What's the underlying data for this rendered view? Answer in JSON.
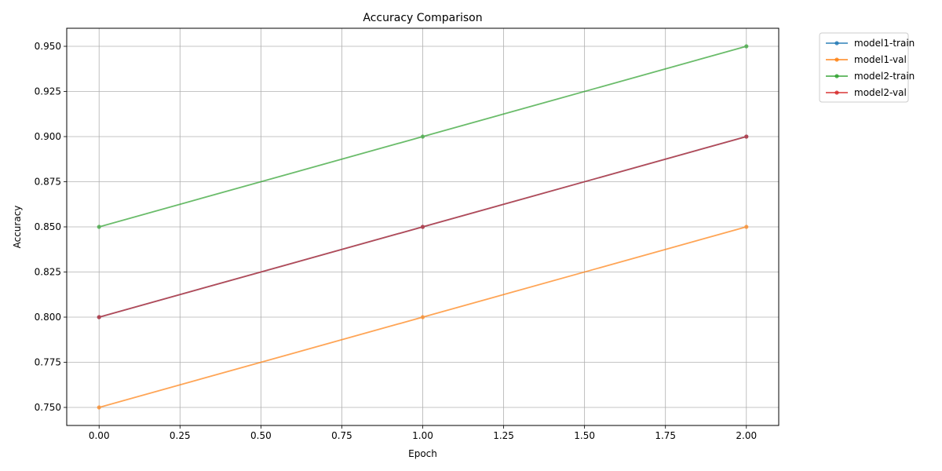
{
  "chart_data": {
    "type": "line",
    "title": "Accuracy Comparison",
    "xlabel": "Epoch",
    "ylabel": "Accuracy",
    "x": [
      0,
      1,
      2
    ],
    "xlim": [
      -0.1,
      2.1
    ],
    "ylim": [
      0.74,
      0.96
    ],
    "xticks": [
      0.0,
      0.25,
      0.5,
      0.75,
      1.0,
      1.25,
      1.5,
      1.75,
      2.0
    ],
    "xtick_labels": [
      "0.00",
      "0.25",
      "0.50",
      "0.75",
      "1.00",
      "1.25",
      "1.50",
      "1.75",
      "2.00"
    ],
    "yticks": [
      0.75,
      0.775,
      0.8,
      0.825,
      0.85,
      0.875,
      0.9,
      0.925,
      0.95
    ],
    "ytick_labels": [
      "0.750",
      "0.775",
      "0.800",
      "0.825",
      "0.850",
      "0.875",
      "0.900",
      "0.925",
      "0.950"
    ],
    "grid": true,
    "legend_position": "outside-top-right",
    "series": [
      {
        "name": "model1-train",
        "values": [
          0.8,
          0.85,
          0.9
        ],
        "color": "#1f77b4"
      },
      {
        "name": "model1-val",
        "values": [
          0.75,
          0.8,
          0.85
        ],
        "color": "#ff7f0e"
      },
      {
        "name": "model2-train",
        "values": [
          0.85,
          0.9,
          0.95
        ],
        "color": "#2ca02c"
      },
      {
        "name": "model2-val",
        "values": [
          0.8,
          0.85,
          0.9
        ],
        "color": "#d62728"
      }
    ]
  }
}
